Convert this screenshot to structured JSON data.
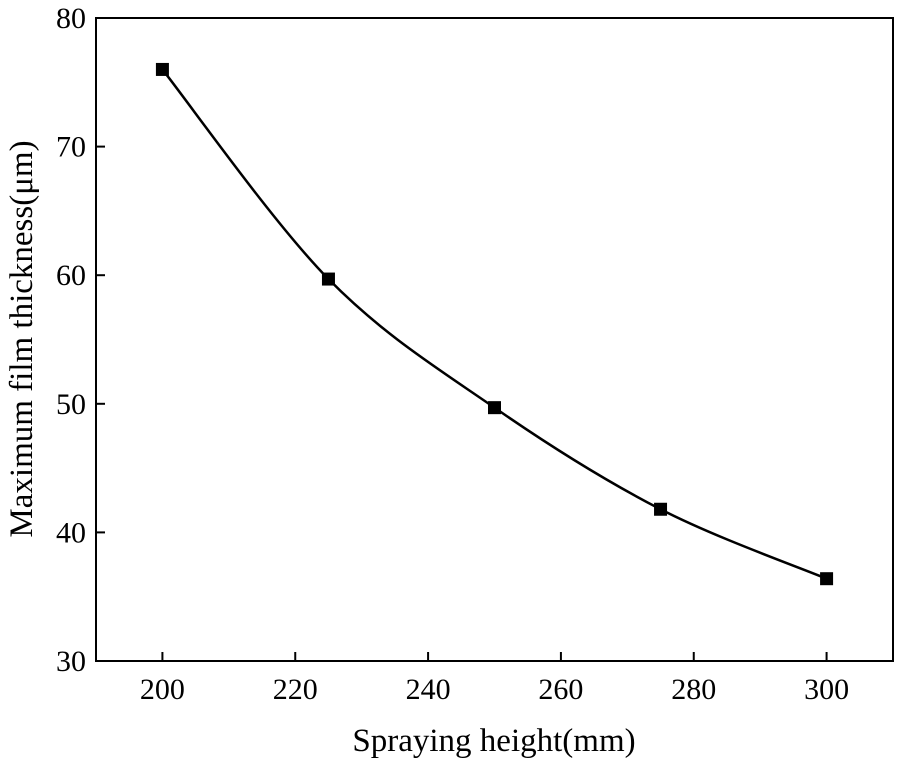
{
  "chart_data": {
    "type": "line",
    "title": "",
    "xlabel": "Spraying height(mm)",
    "ylabel": "Maximum film thickness(μm)",
    "xlim": [
      190,
      310
    ],
    "ylim": [
      30,
      80
    ],
    "xticks": [
      200,
      220,
      240,
      260,
      280,
      300
    ],
    "yticks": [
      30,
      40,
      50,
      60,
      70,
      80
    ],
    "x": [
      200,
      225,
      250,
      275,
      300
    ],
    "series": [
      {
        "values": [
          76.0,
          59.7,
          49.7,
          41.8,
          36.4
        ],
        "marker": "square",
        "color": "#000000",
        "smooth": true
      }
    ],
    "grid": false,
    "legend": "none"
  }
}
